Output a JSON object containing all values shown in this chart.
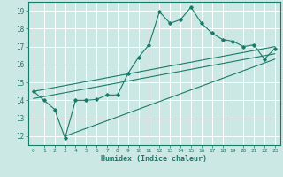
{
  "xlabel": "Humidex (Indice chaleur)",
  "bg_color": "#cce8e4",
  "grid_color": "#ffffff",
  "line_color": "#1a7a6a",
  "xlim": [
    -0.5,
    23.5
  ],
  "ylim": [
    11.5,
    19.5
  ],
  "xticks": [
    0,
    1,
    2,
    3,
    4,
    5,
    6,
    7,
    8,
    9,
    10,
    11,
    12,
    13,
    14,
    15,
    16,
    17,
    18,
    19,
    20,
    21,
    22,
    23
  ],
  "yticks": [
    12,
    13,
    14,
    15,
    16,
    17,
    18,
    19
  ],
  "line1_x": [
    0,
    1,
    2,
    3,
    4,
    5,
    6,
    7,
    8,
    9,
    10,
    11,
    12,
    13,
    14,
    15,
    16,
    17,
    18,
    19,
    20,
    21,
    22,
    23
  ],
  "line1_y": [
    14.5,
    14.0,
    13.5,
    11.9,
    14.0,
    14.0,
    14.05,
    14.3,
    14.3,
    15.5,
    16.4,
    17.1,
    18.95,
    18.3,
    18.5,
    19.2,
    18.3,
    17.75,
    17.4,
    17.3,
    17.0,
    17.1,
    16.3,
    16.9
  ],
  "line2_x": [
    0,
    23
  ],
  "line2_y": [
    14.5,
    17.0
  ],
  "line3_x": [
    0,
    23
  ],
  "line3_y": [
    14.1,
    16.6
  ],
  "line4_x": [
    3,
    23
  ],
  "line4_y": [
    12.0,
    16.3
  ]
}
